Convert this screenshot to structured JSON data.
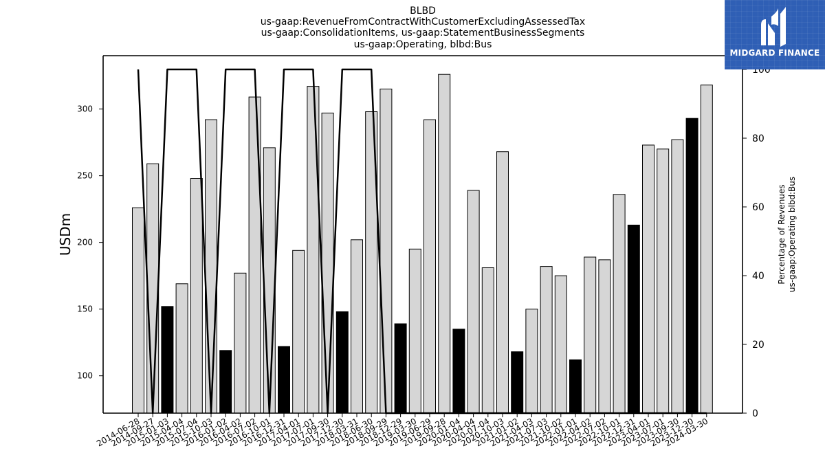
{
  "chart_data": {
    "type": "bar",
    "title_lines": [
      "BLBD",
      "us-gaap:RevenueFromContractWithCustomerExcludingAssessedTax",
      "us-gaap:ConsolidationItems, us-gaap:StatementBusinessSegments",
      "us-gaap:Operating, blbd:Bus"
    ],
    "ylabel": "USDm",
    "y2label_lines": [
      "Percentage of Revenues",
      "us-gaap:Operating blbd:Bus"
    ],
    "ylim": [
      72,
      340
    ],
    "y_ticks": [
      100,
      150,
      200,
      250,
      300
    ],
    "y2lim": [
      0,
      104
    ],
    "y2_ticks": [
      0,
      20,
      40,
      60,
      80,
      100
    ],
    "categories": [
      "2014-06-28",
      "2014-09-27",
      "2015-01-03",
      "2015-04-04",
      "2015-07-04",
      "2015-10-03",
      "2016-01-02",
      "2016-04-02",
      "2016-07-02",
      "2016-10-01",
      "2016-12-31",
      "2017-04-01",
      "2017-07-01",
      "2017-09-30",
      "2017-12-30",
      "2018-03-31",
      "2018-06-30",
      "2018-09-29",
      "2018-12-29",
      "2019-03-30",
      "2019-06-29",
      "2019-09-28",
      "2020-01-04",
      "2020-04-04",
      "2020-07-04",
      "2020-10-03",
      "2021-01-02",
      "2021-04-03",
      "2021-07-03",
      "2021-10-02",
      "2022-01-01",
      "2022-04-02",
      "2022-07-02",
      "2022-10-01",
      "2022-12-31",
      "2023-04-01",
      "2023-07-01",
      "2023-09-30",
      "2023-12-30",
      "2024-03-30"
    ],
    "series": [
      {
        "values": [
          226,
          259,
          152,
          169,
          248,
          292,
          119,
          177,
          309,
          271,
          122,
          194,
          317,
          297,
          148,
          202,
          298,
          315,
          139,
          195,
          292,
          326,
          135,
          239,
          181,
          268,
          118,
          150,
          182,
          175,
          112,
          189,
          187,
          236,
          213,
          273,
          270,
          277,
          293,
          318
        ],
        "highlighted": [
          false,
          false,
          true,
          false,
          false,
          false,
          true,
          false,
          false,
          false,
          true,
          false,
          false,
          false,
          true,
          false,
          false,
          false,
          true,
          false,
          false,
          false,
          true,
          false,
          false,
          false,
          true,
          false,
          false,
          false,
          true,
          false,
          false,
          false,
          true,
          false,
          false,
          false,
          true,
          false
        ]
      },
      {
        "axis": "right",
        "values": [
          100,
          0,
          100,
          100,
          100,
          0,
          100,
          100,
          100,
          0,
          100,
          100,
          100,
          0,
          100,
          100,
          100,
          0,
          0,
          0,
          0,
          0,
          0,
          0,
          0,
          0,
          0,
          0,
          0,
          0,
          0,
          0,
          0,
          0,
          0,
          0,
          0,
          0,
          0,
          0
        ]
      }
    ],
    "colors": {
      "bar": "#d6d6d6",
      "bar_highlight": "#000000",
      "line": "#000000",
      "edge": "#000000"
    },
    "grid": false,
    "legend": "none"
  },
  "logo": {
    "text": "MIDGARD FINANCE",
    "icon": "midgard-logo-icon",
    "background": "#2f5fb5"
  }
}
